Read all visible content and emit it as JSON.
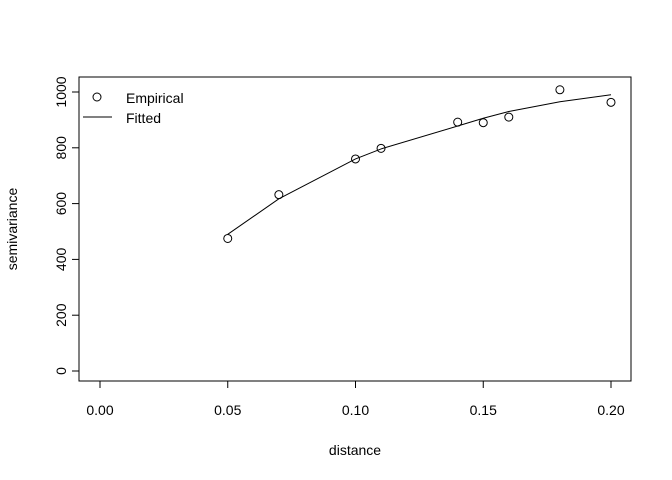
{
  "chart_data": {
    "type": "scatter",
    "title": "",
    "xlabel": "distance",
    "ylabel": "semivariance",
    "xlim": [
      0.0,
      0.2
    ],
    "ylim": [
      0,
      1000
    ],
    "x_ticks": [
      0.0,
      0.05,
      0.1,
      0.15,
      0.2
    ],
    "x_tick_labels": [
      "0.00",
      "0.05",
      "0.10",
      "0.15",
      "0.20"
    ],
    "y_ticks": [
      0,
      200,
      400,
      600,
      800,
      1000
    ],
    "y_tick_labels": [
      "0",
      "200",
      "400",
      "600",
      "800",
      "1000"
    ],
    "grid": false,
    "legend_position": "top-left",
    "series": [
      {
        "name": "Empirical",
        "style": "points",
        "x": [
          0.05,
          0.07,
          0.1,
          0.11,
          0.14,
          0.15,
          0.16,
          0.18,
          0.2
        ],
        "y": [
          475,
          632,
          760,
          798,
          892,
          890,
          910,
          1008,
          963
        ]
      },
      {
        "name": "Fitted",
        "style": "line",
        "x": [
          0.05,
          0.07,
          0.1,
          0.11,
          0.14,
          0.15,
          0.16,
          0.18,
          0.2
        ],
        "y": [
          490,
          617,
          760,
          796,
          878,
          906,
          930,
          965,
          990
        ]
      }
    ],
    "colors": {
      "ink": "#000000",
      "background": "#ffffff"
    }
  }
}
